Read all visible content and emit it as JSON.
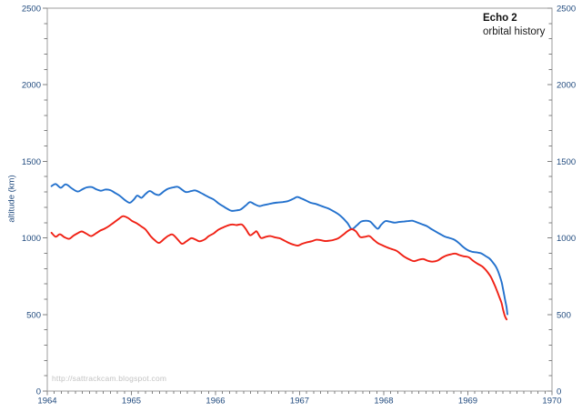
{
  "page": {
    "background": "#ffffff"
  },
  "watermark_text": "http://sattrackcam.blogspot.com",
  "chart_data": {
    "type": "line",
    "title": "Echo 2",
    "subtitle": "orbital history",
    "ylabel": "altitude (km)",
    "xlim": [
      1964,
      1970
    ],
    "ylim": [
      0,
      2500
    ],
    "x_tick_labels": [
      "1964",
      "1965",
      "1966",
      "1967",
      "1968",
      "1969",
      "1970"
    ],
    "x_major_tick_interval": 1,
    "x_minor_tick_interval": 0.083333,
    "y_tick_labels": [
      "0",
      "500",
      "1000",
      "1500",
      "2000",
      "2500"
    ],
    "y_major_tick_interval": 500,
    "y_minor_tick_interval": 100,
    "grid": false,
    "frame": true,
    "legend": "none",
    "y_axis_labels_on_both_sides": true,
    "colors": {
      "frame": "#9d9d9d",
      "tick": "#808080",
      "tick_label": "#1f497d",
      "title": "#111111",
      "watermark": "#c3c3c3",
      "blue_line": "#2371cd",
      "red_line": "#f02115"
    },
    "series": [
      {
        "name": "blue-line-upper",
        "color": "#2371cd",
        "points": [
          [
            1964.05,
            1338
          ],
          [
            1964.1,
            1352
          ],
          [
            1964.16,
            1328
          ],
          [
            1964.22,
            1350
          ],
          [
            1964.29,
            1324
          ],
          [
            1964.36,
            1303
          ],
          [
            1964.42,
            1318
          ],
          [
            1964.47,
            1330
          ],
          [
            1964.53,
            1332
          ],
          [
            1964.58,
            1318
          ],
          [
            1964.64,
            1308
          ],
          [
            1964.69,
            1316
          ],
          [
            1964.75,
            1312
          ],
          [
            1964.8,
            1296
          ],
          [
            1964.86,
            1276
          ],
          [
            1964.92,
            1248
          ],
          [
            1964.98,
            1230
          ],
          [
            1965.03,
            1252
          ],
          [
            1965.07,
            1276
          ],
          [
            1965.12,
            1262
          ],
          [
            1965.17,
            1288
          ],
          [
            1965.22,
            1306
          ],
          [
            1965.28,
            1286
          ],
          [
            1965.33,
            1281
          ],
          [
            1965.39,
            1306
          ],
          [
            1965.44,
            1322
          ],
          [
            1965.5,
            1330
          ],
          [
            1965.55,
            1334
          ],
          [
            1965.6,
            1316
          ],
          [
            1965.65,
            1299
          ],
          [
            1965.71,
            1306
          ],
          [
            1965.76,
            1310
          ],
          [
            1965.82,
            1296
          ],
          [
            1965.87,
            1281
          ],
          [
            1965.92,
            1266
          ],
          [
            1965.98,
            1250
          ],
          [
            1966.04,
            1224
          ],
          [
            1966.09,
            1207
          ],
          [
            1966.14,
            1190
          ],
          [
            1966.19,
            1177
          ],
          [
            1966.25,
            1180
          ],
          [
            1966.3,
            1186
          ],
          [
            1966.36,
            1212
          ],
          [
            1966.41,
            1234
          ],
          [
            1966.46,
            1221
          ],
          [
            1966.52,
            1208
          ],
          [
            1966.57,
            1214
          ],
          [
            1966.63,
            1221
          ],
          [
            1966.68,
            1227
          ],
          [
            1966.74,
            1231
          ],
          [
            1966.8,
            1234
          ],
          [
            1966.86,
            1240
          ],
          [
            1966.92,
            1254
          ],
          [
            1966.97,
            1267
          ],
          [
            1967.02,
            1258
          ],
          [
            1967.08,
            1243
          ],
          [
            1967.13,
            1230
          ],
          [
            1967.19,
            1222
          ],
          [
            1967.24,
            1212
          ],
          [
            1967.3,
            1200
          ],
          [
            1967.35,
            1190
          ],
          [
            1967.41,
            1172
          ],
          [
            1967.46,
            1155
          ],
          [
            1967.51,
            1132
          ],
          [
            1967.57,
            1096
          ],
          [
            1967.62,
            1058
          ],
          [
            1967.68,
            1082
          ],
          [
            1967.73,
            1106
          ],
          [
            1967.79,
            1112
          ],
          [
            1967.84,
            1106
          ],
          [
            1967.89,
            1078
          ],
          [
            1967.93,
            1060
          ],
          [
            1967.97,
            1086
          ],
          [
            1968.02,
            1110
          ],
          [
            1968.07,
            1106
          ],
          [
            1968.13,
            1100
          ],
          [
            1968.18,
            1104
          ],
          [
            1968.24,
            1107
          ],
          [
            1968.29,
            1110
          ],
          [
            1968.34,
            1112
          ],
          [
            1968.4,
            1101
          ],
          [
            1968.45,
            1090
          ],
          [
            1968.51,
            1078
          ],
          [
            1968.56,
            1060
          ],
          [
            1968.62,
            1041
          ],
          [
            1968.67,
            1025
          ],
          [
            1968.73,
            1008
          ],
          [
            1968.78,
            1000
          ],
          [
            1968.84,
            988
          ],
          [
            1968.9,
            963
          ],
          [
            1968.95,
            938
          ],
          [
            1969.0,
            920
          ],
          [
            1969.05,
            910
          ],
          [
            1969.11,
            905
          ],
          [
            1969.16,
            899
          ],
          [
            1969.21,
            882
          ],
          [
            1969.26,
            864
          ],
          [
            1969.3,
            838
          ],
          [
            1969.34,
            806
          ],
          [
            1969.37,
            766
          ],
          [
            1969.4,
            714
          ],
          [
            1969.42,
            660
          ],
          [
            1969.44,
            602
          ],
          [
            1969.46,
            546
          ],
          [
            1969.47,
            502
          ]
        ]
      },
      {
        "name": "red-line-lower",
        "color": "#f02115",
        "points": [
          [
            1964.05,
            1034
          ],
          [
            1964.1,
            1008
          ],
          [
            1964.15,
            1024
          ],
          [
            1964.2,
            1006
          ],
          [
            1964.26,
            994
          ],
          [
            1964.31,
            1014
          ],
          [
            1964.36,
            1030
          ],
          [
            1964.41,
            1042
          ],
          [
            1964.47,
            1026
          ],
          [
            1964.52,
            1012
          ],
          [
            1964.58,
            1030
          ],
          [
            1964.63,
            1048
          ],
          [
            1964.68,
            1060
          ],
          [
            1964.74,
            1080
          ],
          [
            1964.79,
            1100
          ],
          [
            1964.85,
            1124
          ],
          [
            1964.9,
            1142
          ],
          [
            1964.96,
            1130
          ],
          [
            1965.01,
            1110
          ],
          [
            1965.06,
            1097
          ],
          [
            1965.12,
            1074
          ],
          [
            1965.17,
            1054
          ],
          [
            1965.23,
            1010
          ],
          [
            1965.28,
            984
          ],
          [
            1965.33,
            968
          ],
          [
            1965.39,
            994
          ],
          [
            1965.44,
            1014
          ],
          [
            1965.49,
            1022
          ],
          [
            1965.55,
            990
          ],
          [
            1965.6,
            962
          ],
          [
            1965.65,
            976
          ],
          [
            1965.71,
            998
          ],
          [
            1965.76,
            990
          ],
          [
            1965.81,
            978
          ],
          [
            1965.87,
            990
          ],
          [
            1965.92,
            1012
          ],
          [
            1965.98,
            1030
          ],
          [
            1966.03,
            1052
          ],
          [
            1966.09,
            1068
          ],
          [
            1966.14,
            1080
          ],
          [
            1966.2,
            1088
          ],
          [
            1966.25,
            1084
          ],
          [
            1966.31,
            1088
          ],
          [
            1966.36,
            1058
          ],
          [
            1966.41,
            1018
          ],
          [
            1966.46,
            1034
          ],
          [
            1966.49,
            1042
          ],
          [
            1966.54,
            1000
          ],
          [
            1966.6,
            1008
          ],
          [
            1966.65,
            1012
          ],
          [
            1966.7,
            1005
          ],
          [
            1966.76,
            998
          ],
          [
            1966.81,
            985
          ],
          [
            1966.87,
            968
          ],
          [
            1966.92,
            957
          ],
          [
            1966.98,
            950
          ],
          [
            1967.03,
            962
          ],
          [
            1967.09,
            972
          ],
          [
            1967.14,
            978
          ],
          [
            1967.2,
            988
          ],
          [
            1967.25,
            985
          ],
          [
            1967.3,
            980
          ],
          [
            1967.36,
            982
          ],
          [
            1967.41,
            988
          ],
          [
            1967.46,
            998
          ],
          [
            1967.52,
            1022
          ],
          [
            1967.57,
            1044
          ],
          [
            1967.62,
            1057
          ],
          [
            1967.67,
            1042
          ],
          [
            1967.72,
            1006
          ],
          [
            1967.78,
            1008
          ],
          [
            1967.83,
            1012
          ],
          [
            1967.88,
            988
          ],
          [
            1967.93,
            966
          ],
          [
            1967.99,
            950
          ],
          [
            1968.04,
            938
          ],
          [
            1968.09,
            928
          ],
          [
            1968.15,
            916
          ],
          [
            1968.2,
            896
          ],
          [
            1968.25,
            875
          ],
          [
            1968.31,
            858
          ],
          [
            1968.36,
            848
          ],
          [
            1968.42,
            858
          ],
          [
            1968.47,
            862
          ],
          [
            1968.53,
            850
          ],
          [
            1968.58,
            845
          ],
          [
            1968.64,
            852
          ],
          [
            1968.69,
            870
          ],
          [
            1968.74,
            884
          ],
          [
            1968.8,
            893
          ],
          [
            1968.85,
            898
          ],
          [
            1968.9,
            888
          ],
          [
            1968.95,
            880
          ],
          [
            1969.01,
            874
          ],
          [
            1969.06,
            852
          ],
          [
            1969.11,
            833
          ],
          [
            1969.17,
            814
          ],
          [
            1969.22,
            786
          ],
          [
            1969.27,
            748
          ],
          [
            1969.31,
            702
          ],
          [
            1969.34,
            664
          ],
          [
            1969.37,
            620
          ],
          [
            1969.4,
            576
          ],
          [
            1969.42,
            528
          ],
          [
            1969.44,
            490
          ],
          [
            1969.46,
            468
          ]
        ]
      }
    ]
  }
}
